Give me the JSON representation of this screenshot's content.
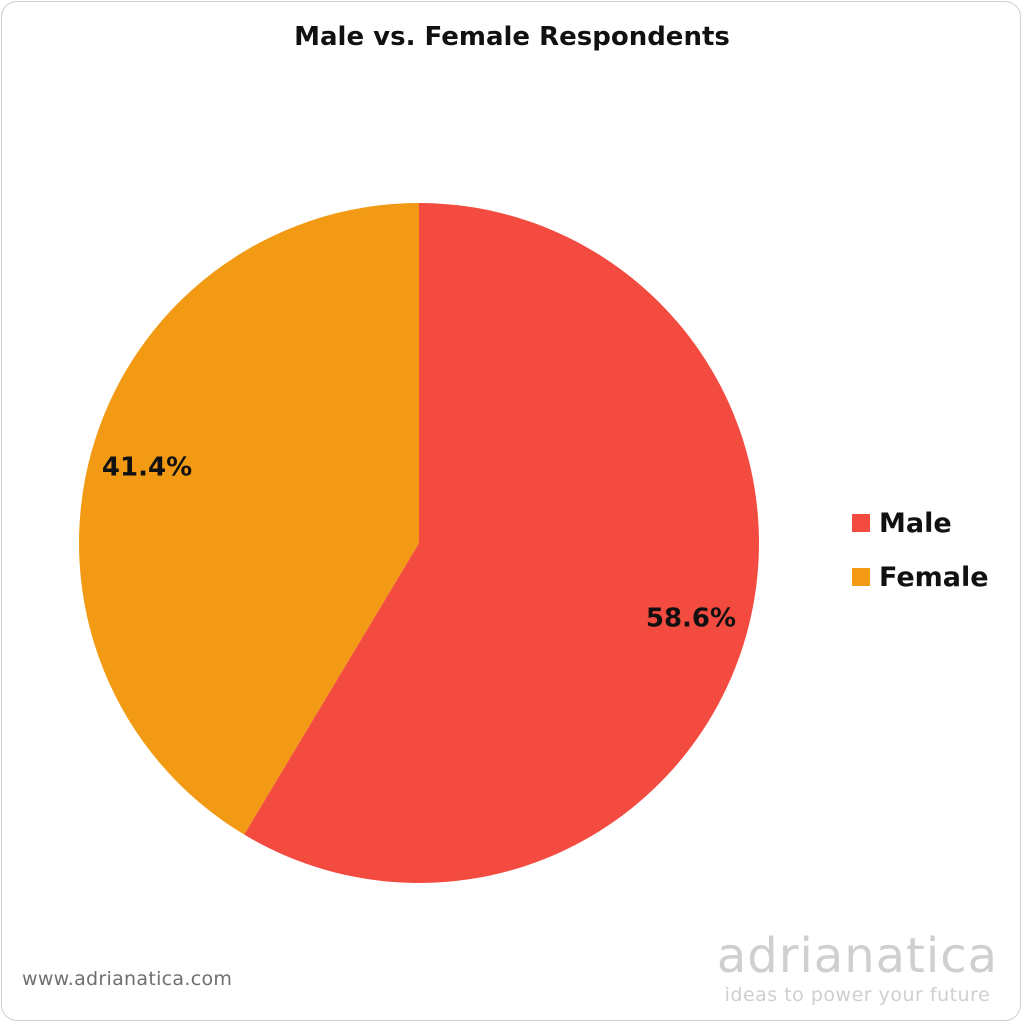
{
  "chart_data": {
    "type": "pie",
    "title": "Male vs. Female Respondents",
    "categories": [
      "Male",
      "Female"
    ],
    "values": [
      58.6,
      41.4
    ],
    "value_labels": [
      "58.6%",
      "41.4%"
    ],
    "colors": [
      "#F44B40",
      "#F39A14"
    ],
    "legend_position": "right",
    "start_angle": "top, clockwise"
  },
  "footer": {
    "url": "www.adrianatica.com",
    "brand_name": "adrianatica",
    "brand_tagline": "ideas to power your future"
  }
}
